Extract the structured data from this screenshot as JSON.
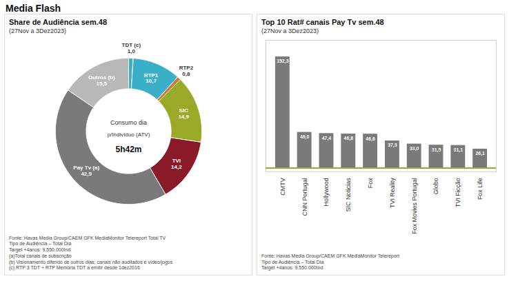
{
  "title": "Media Flash",
  "chart_data": [
    {
      "type": "pie",
      "title": "Share de Audiência sem.48",
      "subtitle": "(27Nov a 3Dez2023)",
      "categories": [
        "TDT (c)",
        "RTP1",
        "RTP2",
        "SIC",
        "TVI",
        "Pay Tv (a)",
        "Outros (b)"
      ],
      "values": [
        1.0,
        10.7,
        0.8,
        14.9,
        14.2,
        42.9,
        15.5
      ],
      "value_labels": [
        "1,0",
        "10,7",
        "0,8",
        "14,9",
        "14,2",
        "42,9",
        "15,5"
      ],
      "colors": [
        "#3bafc8",
        "#3bafc8",
        "#d07830",
        "#9aaa28",
        "#8b1a28",
        "#7a7a7a",
        "#b8b8b8"
      ],
      "data_labels": true,
      "annotations": [
        "Consumo dia",
        "p/Indivíduo (ATV)",
        "5h42m"
      ],
      "footnote": "Fonte: Havas Media Group/CAEM GFK MediaMonitor Telereport Total TV\nTipo de Audiência – Total Dia\nTarget +4anos: 9.550.000Ind\n(a)Total canais de subscrição\n(b) Visionamento diferido de outros dias; canais não auditados e vídeo/jogos\n(c) RTP 3 TDT + RTP Memória TDT a emitir desde 1dez2016"
    },
    {
      "type": "bar",
      "title": "Top 10 Rat# canais Pay Tv sem.48",
      "subtitle": "(27Nov a 3Dez2023)",
      "categories": [
        "CMTV",
        "CNN Portugal",
        "Hollywood",
        "SIC Noticias",
        "Fox",
        "TVI Reality",
        "Fox Movies Portugal",
        "Globo",
        "TVI Ficção",
        "Fox Life"
      ],
      "values": [
        152.3,
        49.0,
        47.4,
        46.8,
        46.6,
        37.3,
        33.0,
        31.5,
        31.1,
        26.1
      ],
      "value_labels": [
        "152,3",
        "49,0",
        "47,4",
        "46,8",
        "46,6",
        "37,3",
        "33,0",
        "31,5",
        "31,1",
        "26,1"
      ],
      "color": "#7a7a7a",
      "ylim": [
        -5,
        175
      ],
      "yticks": [],
      "tick_labels": "x",
      "data_labels": true,
      "baseline": {
        "y": 0,
        "color": "#9aaa28"
      },
      "footnote": "Fonte: Havas Media Group/CAEM GFK MediaMonitor Telereport\nTipo de Audiência – Total Dia\nTarget +4anos: 9.550.000Ind"
    }
  ]
}
